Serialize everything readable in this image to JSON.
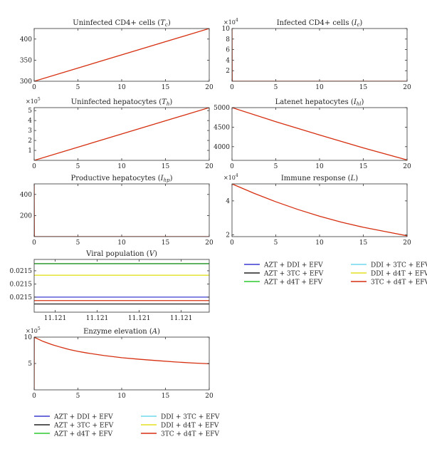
{
  "chart_data": [
    {
      "id": "p1",
      "type": "line",
      "title": "Uninfected CD4+ cells (",
      "title_symbol": "T",
      "title_sub": "c",
      "title_end": ")",
      "xlim": [
        0,
        20
      ],
      "ylim": [
        300,
        425
      ],
      "xticks": [
        0,
        5,
        10,
        15,
        20
      ],
      "yticks": [
        300,
        350,
        400
      ],
      "xticklabels": [
        "0",
        "5",
        "10",
        "15",
        "20"
      ],
      "yticklabels": [
        "300",
        "350",
        "400"
      ],
      "series": [
        {
          "color": "#d62f10",
          "x": [
            0,
            20
          ],
          "y": [
            300,
            425
          ]
        }
      ]
    },
    {
      "id": "p2",
      "type": "line",
      "title": "Infected CD4+ cells (",
      "title_symbol": "I",
      "title_sub": "c",
      "title_end": ")",
      "exponent_base": "×10",
      "exponent_power": "4",
      "xlim": [
        0,
        20
      ],
      "ylim": [
        0,
        10
      ],
      "xticks": [
        0,
        5,
        10,
        15,
        20
      ],
      "yticks": [
        2,
        4,
        6,
        8,
        10
      ],
      "xticklabels": [
        "0",
        "5",
        "10",
        "15",
        "20"
      ],
      "yticklabels": [
        "2",
        "4",
        "6",
        "8",
        "10"
      ],
      "series": [
        {
          "color": "#d62f10",
          "x": [
            0,
            0.02,
            0.05,
            20
          ],
          "y": [
            10,
            0.2,
            0,
            0
          ]
        }
      ]
    },
    {
      "id": "p3",
      "type": "line",
      "title": "Uninfected hepatocytes (",
      "title_symbol": "T",
      "title_sub": "h",
      "title_end": ")",
      "exponent_base": "×10",
      "exponent_power": "5",
      "xlim": [
        0,
        20
      ],
      "ylim": [
        0,
        5.3
      ],
      "xticks": [
        0,
        5,
        10,
        15,
        20
      ],
      "yticks": [
        1,
        2,
        3,
        4,
        5
      ],
      "xticklabels": [
        "0",
        "5",
        "10",
        "15",
        "20"
      ],
      "yticklabels": [
        "1",
        "2",
        "3",
        "4",
        "5"
      ],
      "series": [
        {
          "color": "#d62f10",
          "x": [
            0,
            20
          ],
          "y": [
            0,
            5.3
          ]
        }
      ]
    },
    {
      "id": "p4",
      "type": "line",
      "title": "Latenet hepatocytes (",
      "title_symbol": "I",
      "title_sub": "hl",
      "title_end": ")",
      "xlim": [
        0,
        20
      ],
      "ylim": [
        3650,
        5000
      ],
      "xticks": [
        0,
        5,
        10,
        15,
        20
      ],
      "yticks": [
        4000,
        4500,
        5000
      ],
      "xticklabels": [
        "0",
        "5",
        "10",
        "15",
        "20"
      ],
      "yticklabels": [
        "4000",
        "4500",
        "5000"
      ],
      "series": [
        {
          "color": "#d62f10",
          "x": [
            0,
            5,
            10,
            15,
            20
          ],
          "y": [
            5000,
            4640,
            4300,
            3970,
            3660
          ]
        }
      ]
    },
    {
      "id": "p5",
      "type": "line",
      "title": "Productive hepatocytes (",
      "title_symbol": "I",
      "title_sub": "hp",
      "title_end": ")",
      "xlim": [
        0,
        20
      ],
      "ylim": [
        0,
        500
      ],
      "xticks": [
        0,
        5,
        10,
        15,
        20
      ],
      "yticks": [
        200,
        400
      ],
      "xticklabels": [
        "0",
        "5",
        "10",
        "15",
        "20"
      ],
      "yticklabels": [
        "200",
        "400"
      ],
      "series": [
        {
          "color": "#d62f10",
          "x": [
            0,
            0.02,
            0.05,
            20
          ],
          "y": [
            500,
            10,
            0,
            0
          ]
        }
      ]
    },
    {
      "id": "p6",
      "type": "line",
      "title": "Immune response (",
      "title_symbol": "L",
      "title_sub": "",
      "title_end": ")",
      "exponent_base": "×10",
      "exponent_power": "4",
      "xlim": [
        0,
        20
      ],
      "ylim": [
        1.9,
        5.0
      ],
      "xticks": [
        0,
        5,
        10,
        15,
        20
      ],
      "yticks": [
        2,
        4
      ],
      "xticklabels": [
        "0",
        "5",
        "10",
        "15",
        "20"
      ],
      "yticklabels": [
        "2",
        "4"
      ],
      "series": [
        {
          "color": "#d62f10",
          "x": [
            0,
            2.5,
            5,
            7.5,
            10,
            12.5,
            15,
            17.5,
            20
          ],
          "y": [
            5.0,
            4.45,
            3.95,
            3.5,
            3.1,
            2.75,
            2.45,
            2.2,
            1.95
          ]
        }
      ]
    },
    {
      "id": "p7",
      "type": "line",
      "title": "Viral population (",
      "title_symbol": "V",
      "title_sub": "",
      "title_end": ")",
      "xlim": [
        0,
        1
      ],
      "ylim": [
        0,
        1
      ],
      "xticks": [
        0.12,
        0.36,
        0.6,
        0.84
      ],
      "yticks": [
        0.285,
        0.535,
        0.785
      ],
      "xticklabels": [
        "11.121",
        "11.121",
        "11.121",
        "11.121"
      ],
      "yticklabels": [
        "0.0215",
        "0.0215",
        "0.0215"
      ],
      "series": [
        {
          "color": "#1a8f1a",
          "x": [
            0,
            1
          ],
          "y": [
            0.92,
            0.92
          ]
        },
        {
          "color": "#e3e022",
          "x": [
            0,
            1
          ],
          "y": [
            0.7,
            0.7
          ]
        },
        {
          "color": "#3a3ad0",
          "x": [
            0,
            1
          ],
          "y": [
            0.285,
            0.285
          ]
        },
        {
          "color": "#d62f10",
          "x": [
            0,
            1
          ],
          "y": [
            0.22,
            0.22
          ]
        },
        {
          "color": "#222222",
          "x": [
            0,
            1
          ],
          "y": [
            0.155,
            0.155
          ]
        }
      ]
    },
    {
      "id": "p8",
      "type": "line",
      "title": "Enzyme elevation (",
      "title_symbol": "A",
      "title_sub": "",
      "title_end": ")",
      "exponent_base": "×10",
      "exponent_power": "5",
      "xlim": [
        0,
        20
      ],
      "ylim": [
        0,
        10
      ],
      "xticks": [
        0,
        5,
        10,
        15,
        20
      ],
      "yticks": [
        5,
        10
      ],
      "xticklabels": [
        "0",
        "5",
        "10",
        "15",
        "20"
      ],
      "yticklabels": [
        "5",
        "10"
      ],
      "series": [
        {
          "color": "#d62f10",
          "x": [
            0,
            0.01,
            0.1,
            1,
            2,
            3,
            4,
            5,
            6,
            8,
            10,
            12,
            14,
            16,
            18,
            20
          ],
          "y": [
            0,
            10,
            9.9,
            9.2,
            8.6,
            8.1,
            7.65,
            7.3,
            7.0,
            6.5,
            6.1,
            5.8,
            5.55,
            5.3,
            5.1,
            4.95
          ]
        }
      ]
    }
  ],
  "legend": {
    "entries": [
      {
        "label": "AZT + DDI + EFV",
        "color": "#3a3ad0"
      },
      {
        "label": "AZT + 3TC + EFV",
        "color": "#222222"
      },
      {
        "label": "AZT + d4T + EFV",
        "color": "#2ec82e"
      },
      {
        "label": "DDI + 3TC + EFV",
        "color": "#6fd8ee"
      },
      {
        "label": "DDI + d4T + EFV",
        "color": "#e3e022"
      },
      {
        "label": "3TC + d4T + EFV",
        "color": "#d62f10"
      }
    ]
  }
}
